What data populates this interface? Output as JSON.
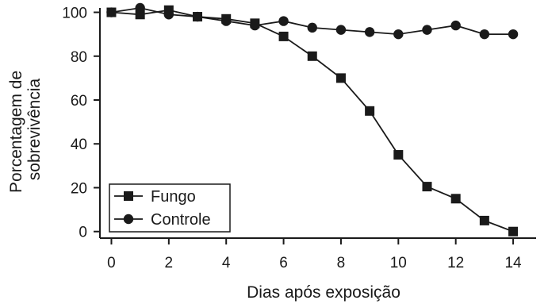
{
  "chart_data": {
    "type": "line",
    "xlabel": "Dias após exposição",
    "ylabel_lines": [
      "Porcentagem de",
      "sobrevivência"
    ],
    "xlim": [
      -0.4,
      14.8
    ],
    "ylim": [
      -3,
      102
    ],
    "xticks": [
      0,
      2,
      4,
      6,
      8,
      10,
      12,
      14
    ],
    "yticks": [
      0,
      20,
      40,
      60,
      80,
      100
    ],
    "grid": false,
    "legend_position": "bottom-left",
    "series": [
      {
        "name": "Fungo",
        "marker": "square",
        "color": "#1a1a1a",
        "x": [
          0,
          1,
          2,
          3,
          4,
          5,
          6,
          7,
          8,
          9,
          10,
          11,
          12,
          13,
          14
        ],
        "y": [
          100,
          99,
          101,
          98,
          97,
          95,
          89,
          80,
          70,
          55,
          35,
          20.5,
          15,
          5,
          0
        ]
      },
      {
        "name": "Controle",
        "marker": "circle",
        "color": "#1a1a1a",
        "x": [
          0,
          1,
          2,
          3,
          4,
          5,
          6,
          7,
          8,
          9,
          10,
          11,
          12,
          13,
          14
        ],
        "y": [
          100,
          102,
          99,
          98,
          96,
          94,
          96,
          93,
          92,
          91,
          90,
          92,
          94,
          90,
          90
        ]
      }
    ]
  }
}
